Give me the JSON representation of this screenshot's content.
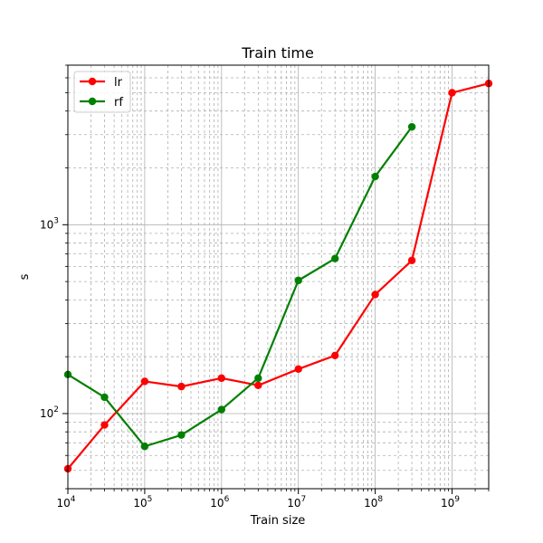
{
  "chart_data": {
    "type": "line",
    "title": "Train time",
    "xlabel": "Train size",
    "ylabel": "s",
    "x_scale": "log",
    "y_scale": "log",
    "xlim": [
      10000,
      3000000000
    ],
    "ylim": [
      40,
      7000
    ],
    "grid": true,
    "legend_position": "top-left",
    "x_ticks": [
      {
        "value": 10000,
        "base": "10",
        "exp": "4"
      },
      {
        "value": 100000,
        "base": "10",
        "exp": "5"
      },
      {
        "value": 1000000,
        "base": "10",
        "exp": "6"
      },
      {
        "value": 10000000,
        "base": "10",
        "exp": "7"
      },
      {
        "value": 100000000,
        "base": "10",
        "exp": "8"
      },
      {
        "value": 1000000000,
        "base": "10",
        "exp": "9"
      }
    ],
    "y_ticks": [
      {
        "value": 100,
        "base": "10",
        "exp": "2"
      },
      {
        "value": 1000,
        "base": "10",
        "exp": "3"
      }
    ],
    "series": [
      {
        "name": "lr",
        "color": "#ff0000",
        "points": [
          {
            "x": 10000,
            "y": 51
          },
          {
            "x": 30000,
            "y": 87
          },
          {
            "x": 100000,
            "y": 148
          },
          {
            "x": 300000,
            "y": 139
          },
          {
            "x": 1000000,
            "y": 154
          },
          {
            "x": 3000000,
            "y": 141
          },
          {
            "x": 10000000,
            "y": 172
          },
          {
            "x": 30000000,
            "y": 203
          },
          {
            "x": 100000000,
            "y": 427
          },
          {
            "x": 300000000,
            "y": 647
          },
          {
            "x": 1000000000,
            "y": 5000
          },
          {
            "x": 3000000000,
            "y": 5600
          }
        ]
      },
      {
        "name": "rf",
        "color": "#008000",
        "points": [
          {
            "x": 10000,
            "y": 161
          },
          {
            "x": 30000,
            "y": 122
          },
          {
            "x": 100000,
            "y": 67
          },
          {
            "x": 300000,
            "y": 77
          },
          {
            "x": 1000000,
            "y": 105
          },
          {
            "x": 3000000,
            "y": 154
          },
          {
            "x": 10000000,
            "y": 507
          },
          {
            "x": 30000000,
            "y": 662
          },
          {
            "x": 100000000,
            "y": 1800
          },
          {
            "x": 300000000,
            "y": 3300
          }
        ]
      }
    ]
  }
}
